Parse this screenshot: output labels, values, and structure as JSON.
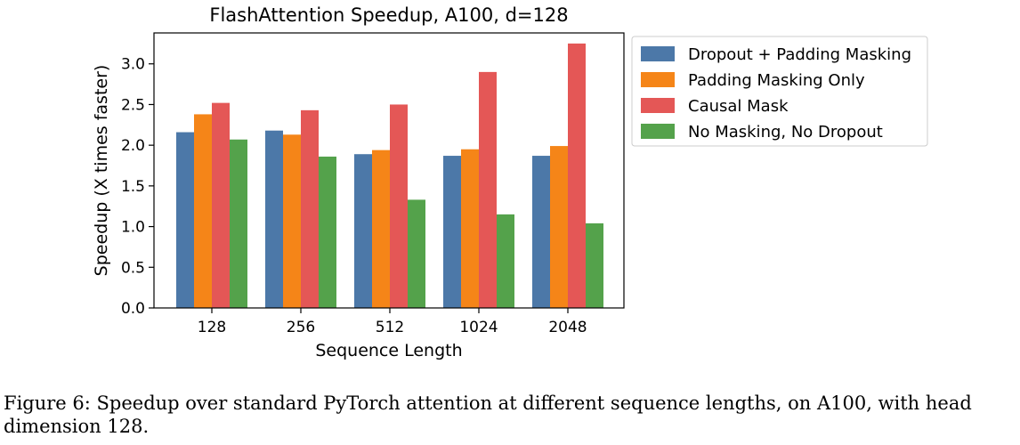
{
  "chart_data": {
    "type": "bar",
    "title": "FlashAttention Speedup, A100, d=128",
    "xlabel": "Sequence Length",
    "ylabel": "Speedup (X times faster)",
    "categories": [
      "128",
      "256",
      "512",
      "1024",
      "2048"
    ],
    "ylim": [
      0,
      3.38
    ],
    "yticks": [
      "0.0",
      "0.5",
      "1.0",
      "1.5",
      "2.0",
      "2.5",
      "3.0"
    ],
    "grid": false,
    "legend_position": "right, outside plot",
    "series": [
      {
        "name": "Dropout + Padding Masking",
        "color": "#4c78a8",
        "values": [
          2.16,
          2.18,
          1.89,
          1.87,
          1.87
        ]
      },
      {
        "name": "Padding Masking Only",
        "color": "#f58518",
        "values": [
          2.38,
          2.13,
          1.94,
          1.95,
          1.99
        ]
      },
      {
        "name": "Causal Mask",
        "color": "#e45756",
        "values": [
          2.52,
          2.43,
          2.5,
          2.9,
          3.25
        ]
      },
      {
        "name": "No Masking, No Dropout",
        "color": "#54a24b",
        "values": [
          2.07,
          1.86,
          1.33,
          1.15,
          1.04
        ]
      }
    ]
  },
  "caption": "Figure 6: Speedup over standard PyTorch attention at different sequence lengths, on A100, with head dimension 128."
}
